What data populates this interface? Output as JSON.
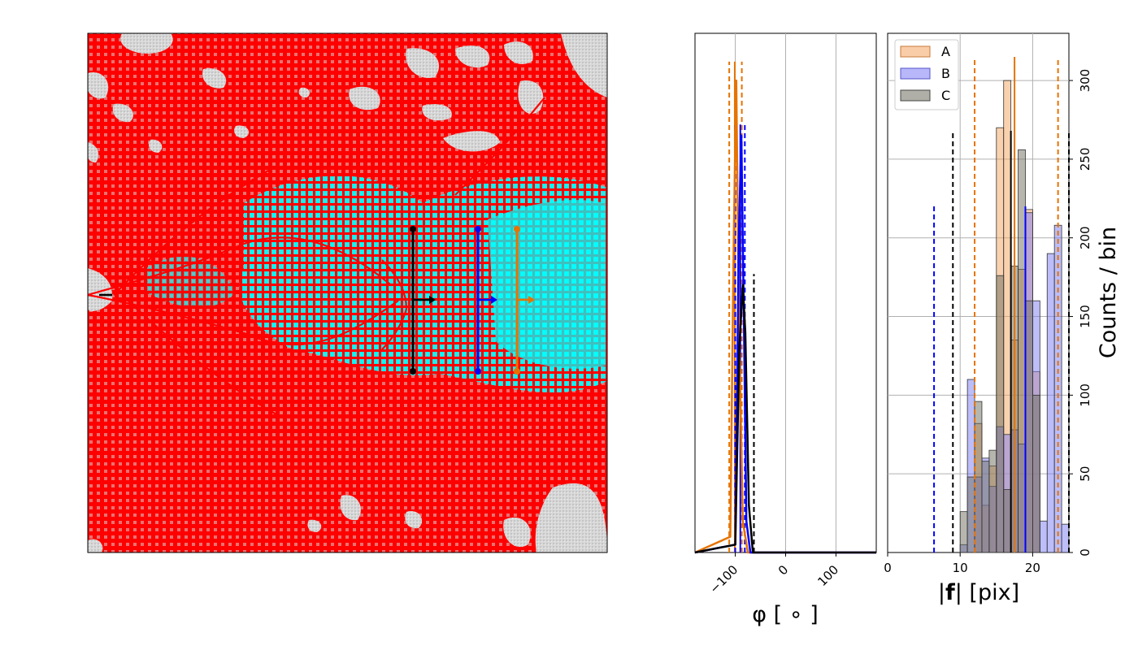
{
  "colors": {
    "background_red": "#ff0000",
    "grid_cyan": "#00ffff",
    "mask_gray": "#d8d8d8",
    "series_A": "#e67300",
    "series_B": "#0000ff",
    "series_C": "#000000",
    "fill_A": "#f4a460",
    "fill_B": "#7b7bf4",
    "fill_C": "#6e6e5e",
    "grid_line": "#b0b0b0"
  },
  "panel_image": {
    "type": "vector-field-image",
    "description_markers": [
      {
        "series": "C",
        "color": "#000000"
      },
      {
        "series": "B",
        "color": "#0000ff"
      },
      {
        "series": "A",
        "color": "#e67300"
      }
    ]
  },
  "chart_data": [
    {
      "type": "line",
      "xlabel": "φ [ ∘ ]",
      "ylabel": "",
      "xlim": [
        -180,
        180
      ],
      "x_ticks": [
        -100,
        0,
        100
      ],
      "x_tick_labels": [
        "−100",
        "0",
        "100"
      ],
      "grid": true,
      "series": [
        {
          "name": "A",
          "color": "#e67300",
          "x": [
            -180,
            -110,
            -103,
            -98,
            -93,
            -85,
            -75,
            180
          ],
          "y": [
            0,
            10,
            200,
            300,
            150,
            20,
            0,
            0
          ]
        },
        {
          "name": "B",
          "color": "#0000ff",
          "x": [
            -180,
            -100,
            -93,
            -88,
            -83,
            -78,
            -70,
            180
          ],
          "y": [
            0,
            5,
            200,
            265,
            150,
            20,
            0,
            0
          ]
        },
        {
          "name": "C",
          "color": "#000000",
          "x": [
            -180,
            -100,
            -92,
            -85,
            -80,
            -73,
            -65,
            180
          ],
          "y": [
            0,
            5,
            130,
            170,
            140,
            30,
            0,
            0
          ]
        }
      ],
      "vlines": [
        {
          "series": "A",
          "x": -112,
          "y_top": 312,
          "style": "dashed"
        },
        {
          "series": "A",
          "x": -101,
          "y_top": 312,
          "style": "solid"
        },
        {
          "series": "A",
          "x": -87,
          "y_top": 312,
          "style": "dashed"
        },
        {
          "series": "B",
          "x": -100,
          "y_top": 272,
          "style": "dashed"
        },
        {
          "series": "B",
          "x": -90,
          "y_top": 272,
          "style": "solid"
        },
        {
          "series": "B",
          "x": -81,
          "y_top": 272,
          "style": "dashed"
        },
        {
          "series": "C",
          "x": -63,
          "y_top": 177,
          "style": "dashed"
        }
      ]
    },
    {
      "type": "bar",
      "xlabel": "|f| [pix]",
      "ylabel": "Counts / bin",
      "xlim": [
        0,
        25
      ],
      "ylim": [
        0,
        330
      ],
      "x_ticks": [
        0,
        10,
        20
      ],
      "y_ticks": [
        0,
        50,
        100,
        150,
        200,
        250,
        300
      ],
      "grid": true,
      "legend": {
        "placement": "top-left",
        "entries": [
          "A",
          "B",
          "C"
        ]
      },
      "bin_width": 1,
      "series": [
        {
          "name": "A",
          "color": "#f4a460",
          "bin_starts": [
            11,
            12,
            13,
            14,
            15,
            16,
            17,
            18,
            19,
            20,
            21,
            22,
            23,
            24
          ],
          "values": [
            0,
            82,
            30,
            55,
            270,
            300,
            135,
            180,
            218,
            115,
            0,
            0,
            0,
            0
          ]
        },
        {
          "name": "B",
          "color": "#7b7bf4",
          "bin_starts": [
            9,
            10,
            11,
            12,
            13,
            14,
            15,
            16,
            17,
            18,
            19,
            20,
            21,
            22,
            23,
            24
          ],
          "values": [
            0,
            5,
            110,
            48,
            60,
            42,
            80,
            75,
            78,
            69,
            216,
            160,
            20,
            190,
            208,
            18
          ]
        },
        {
          "name": "C",
          "color": "#6e6e5e",
          "bin_starts": [
            10,
            11,
            12,
            13,
            14,
            15,
            16,
            17,
            18,
            19,
            20,
            21
          ],
          "values": [
            26,
            48,
            96,
            58,
            65,
            176,
            40,
            182,
            256,
            160,
            100,
            0
          ]
        }
      ],
      "vlines": [
        {
          "series": "B",
          "x": 6.4,
          "y_top": 220,
          "style": "dashed"
        },
        {
          "series": "C",
          "x": 9.0,
          "y_top": 268,
          "style": "dashed"
        },
        {
          "series": "A",
          "x": 12.0,
          "y_top": 315,
          "style": "dashed"
        },
        {
          "series": "C",
          "x": 17.0,
          "y_top": 268,
          "style": "solid"
        },
        {
          "series": "B",
          "x": 17.8,
          "y_top": 0,
          "style": "none"
        },
        {
          "series": "A",
          "x": 17.5,
          "y_top": 315,
          "style": "solid"
        },
        {
          "series": "B",
          "x": 19.0,
          "y_top": 220,
          "style": "solid"
        },
        {
          "series": "A",
          "x": 23.5,
          "y_top": 315,
          "style": "dashed"
        },
        {
          "series": "C",
          "x": 25.0,
          "y_top": 268,
          "style": "dashed"
        }
      ]
    }
  ]
}
